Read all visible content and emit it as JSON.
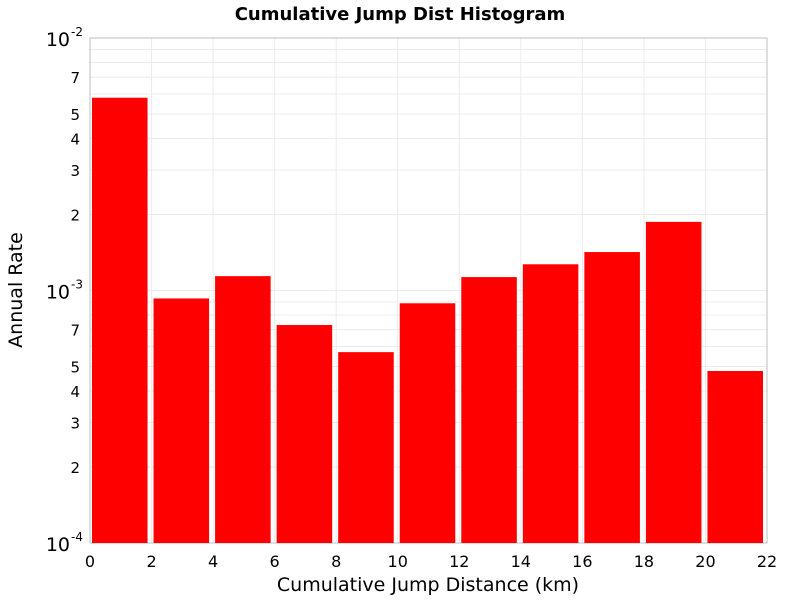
{
  "chart_data": {
    "type": "bar",
    "title": "Cumulative Jump Dist Histogram",
    "xlabel": "Cumulative Jump Distance (km)",
    "ylabel": "Annual Rate",
    "x_scale": "linear",
    "y_scale": "log",
    "xlim": [
      0,
      22
    ],
    "ylim": [
      0.0001,
      0.01
    ],
    "x_ticks": [
      "0",
      "2",
      "4",
      "6",
      "8",
      "10",
      "12",
      "14",
      "16",
      "18",
      "20",
      "22"
    ],
    "y_major_ticks": [
      {
        "base": "10",
        "exp": "-2"
      },
      {
        "base": "10",
        "exp": "-3"
      },
      {
        "base": "10",
        "exp": "-4"
      }
    ],
    "y_minor_tick_labels": [
      "7",
      "5",
      "4",
      "3",
      "2"
    ],
    "bar_color": "#ff0000",
    "grid": true,
    "bars": [
      {
        "x_start": 0,
        "x_end": 2,
        "value": 0.0058
      },
      {
        "x_start": 2,
        "x_end": 4,
        "value": 0.00093
      },
      {
        "x_start": 4,
        "x_end": 6,
        "value": 0.00114
      },
      {
        "x_start": 6,
        "x_end": 8,
        "value": 0.00073
      },
      {
        "x_start": 8,
        "x_end": 10,
        "value": 0.00057
      },
      {
        "x_start": 10,
        "x_end": 12,
        "value": 0.00089
      },
      {
        "x_start": 12,
        "x_end": 14,
        "value": 0.00113
      },
      {
        "x_start": 14,
        "x_end": 16,
        "value": 0.00127
      },
      {
        "x_start": 16,
        "x_end": 18,
        "value": 0.00142
      },
      {
        "x_start": 18,
        "x_end": 20,
        "value": 0.00187
      },
      {
        "x_start": 20,
        "x_end": 22,
        "value": 0.00048
      }
    ]
  }
}
